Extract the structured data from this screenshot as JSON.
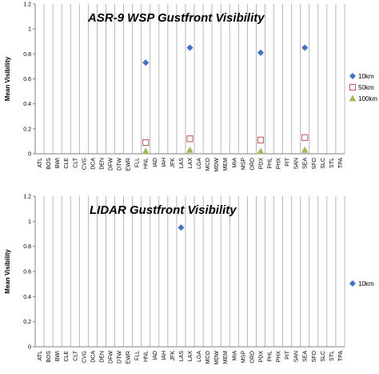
{
  "chart_data": [
    {
      "type": "scatter",
      "title": "ASR-9 WSP Gustfront Visibility",
      "ylabel": "Mean Visibility",
      "ylim": [
        0,
        1.2
      ],
      "yticks": [
        "0",
        "0.2",
        "0.4",
        "0.6",
        "0.8",
        "1",
        "1.2"
      ],
      "grid": "vertical",
      "legend_position": "right",
      "categories": [
        "ATL",
        "BOS",
        "BWI",
        "CLE",
        "CLT",
        "CVG",
        "DCA",
        "DEN",
        "DFW",
        "DTW",
        "EWR",
        "FLL",
        "HNL",
        "IAD",
        "IAH",
        "JFK",
        "LAS",
        "LAX",
        "LGA",
        "MCO",
        "MDW",
        "MEM",
        "MIA",
        "MSP",
        "ORD",
        "PDX",
        "PHL",
        "PHX",
        "PIT",
        "SAN",
        "SEA",
        "SFO",
        "SLC",
        "STL",
        "TPA"
      ],
      "series": [
        {
          "name": "10km",
          "marker": "diamond",
          "color": "#4472c4",
          "values": [
            null,
            null,
            null,
            null,
            null,
            null,
            null,
            null,
            null,
            null,
            null,
            null,
            0.73,
            null,
            null,
            null,
            null,
            0.85,
            null,
            null,
            null,
            null,
            null,
            null,
            null,
            0.81,
            null,
            null,
            null,
            null,
            0.85,
            null,
            null,
            null,
            null
          ]
        },
        {
          "name": "50km",
          "marker": "square",
          "color": "#c0504d",
          "values": [
            null,
            null,
            null,
            null,
            null,
            null,
            null,
            null,
            null,
            null,
            null,
            null,
            0.09,
            null,
            null,
            null,
            null,
            0.12,
            null,
            null,
            null,
            null,
            null,
            null,
            null,
            0.11,
            null,
            null,
            null,
            null,
            0.13,
            null,
            null,
            null,
            null
          ]
        },
        {
          "name": "100km",
          "marker": "triangle",
          "color": "#9bbb59",
          "values": [
            null,
            null,
            null,
            null,
            null,
            null,
            null,
            null,
            null,
            null,
            null,
            null,
            0.02,
            null,
            null,
            null,
            null,
            0.03,
            null,
            null,
            null,
            null,
            null,
            null,
            null,
            0.02,
            null,
            null,
            null,
            null,
            0.03,
            null,
            null,
            null,
            null
          ]
        }
      ]
    },
    {
      "type": "scatter",
      "title": "LIDAR Gustfront Visibility",
      "ylabel": "Mean Visibility",
      "ylim": [
        0,
        1.2
      ],
      "yticks": [
        "0",
        "0.2",
        "0.4",
        "0.6",
        "0.8",
        "1",
        "1.2"
      ],
      "grid": "vertical",
      "legend_position": "right",
      "categories": [
        "ATL",
        "BOS",
        "BWI",
        "CLE",
        "CLT",
        "CVG",
        "DCA",
        "DEN",
        "DFW",
        "DTW",
        "EWR",
        "FLL",
        "HNL",
        "IAD",
        "IAH",
        "JFK",
        "LAS",
        "LAX",
        "LGA",
        "MCO",
        "MDW",
        "MEM",
        "MIA",
        "MSP",
        "ORD",
        "PDX",
        "PHL",
        "PHX",
        "PIT",
        "SAN",
        "SEA",
        "SFO",
        "SLC",
        "STL",
        "TPA"
      ],
      "series": [
        {
          "name": "10km",
          "marker": "diamond",
          "color": "#4472c4",
          "values": [
            null,
            null,
            null,
            null,
            null,
            null,
            null,
            null,
            null,
            null,
            null,
            null,
            null,
            null,
            null,
            null,
            0.95,
            null,
            null,
            null,
            null,
            null,
            null,
            null,
            null,
            null,
            null,
            null,
            null,
            null,
            null,
            null,
            null,
            null,
            null
          ]
        }
      ]
    }
  ]
}
